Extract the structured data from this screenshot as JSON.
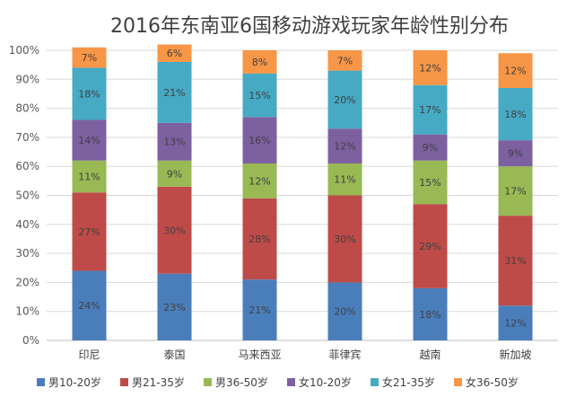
{
  "chart_data": {
    "type": "bar",
    "stacked": true,
    "percent_stacked": true,
    "title": "2016年东南亚6国移动游戏玩家年龄性别分布",
    "categories": [
      "印尼",
      "泰国",
      "马来西亚",
      "菲律宾",
      "越南",
      "新加坡"
    ],
    "series": [
      {
        "name": "男10-20岁",
        "color": "#4a7ebb",
        "values": [
          24,
          23,
          21,
          20,
          18,
          12
        ]
      },
      {
        "name": "男21-35岁",
        "color": "#be4b48",
        "values": [
          27,
          30,
          28,
          30,
          29,
          31
        ]
      },
      {
        "name": "男36-50岁",
        "color": "#98b954",
        "values": [
          11,
          9,
          12,
          11,
          15,
          17
        ]
      },
      {
        "name": "女10-20岁",
        "color": "#7d60a0",
        "values": [
          14,
          13,
          16,
          12,
          9,
          9
        ]
      },
      {
        "name": "女21-35岁",
        "color": "#46aac5",
        "values": [
          18,
          21,
          15,
          20,
          17,
          18
        ]
      },
      {
        "name": "女36-50岁",
        "color": "#f79646",
        "values": [
          7,
          6,
          8,
          7,
          12,
          12
        ]
      }
    ],
    "value_suffix": "%",
    "ylim": [
      0,
      100
    ],
    "yticks": [
      "0%",
      "10%",
      "20%",
      "30%",
      "40%",
      "50%",
      "60%",
      "70%",
      "80%",
      "90%",
      "100%"
    ],
    "grid": true,
    "legend_position": "bottom",
    "axis_color": "#d9d9d9"
  }
}
